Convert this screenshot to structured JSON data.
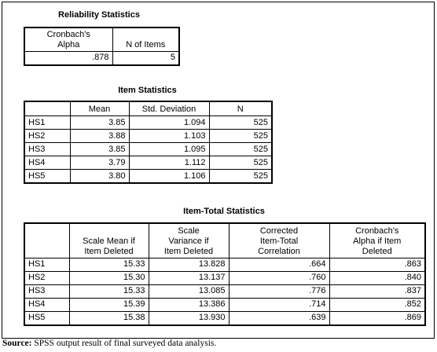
{
  "reliability_statistics": {
    "title": "Reliability Statistics",
    "headers": [
      "Cronbach's\nAlpha",
      "N of Items"
    ],
    "rows": [
      [
        ".878",
        "5"
      ]
    ]
  },
  "item_statistics": {
    "title": "Item Statistics",
    "headers": [
      "Mean",
      "Std. Deviation",
      "N"
    ],
    "rows": [
      {
        "label": "HS1",
        "values": [
          "3.85",
          "1.094",
          "525"
        ]
      },
      {
        "label": "HS2",
        "values": [
          "3.88",
          "1.103",
          "525"
        ]
      },
      {
        "label": "HS3",
        "values": [
          "3.85",
          "1.095",
          "525"
        ]
      },
      {
        "label": "HS4",
        "values": [
          "3.79",
          "1.112",
          "525"
        ]
      },
      {
        "label": "HS5",
        "values": [
          "3.80",
          "1.106",
          "525"
        ]
      }
    ]
  },
  "item_total_statistics": {
    "title": "Item-Total Statistics",
    "headers": [
      "Scale Mean if\nItem Deleted",
      "Scale\nVariance if\nItem Deleted",
      "Corrected\nItem-Total\nCorrelation",
      "Cronbach's\nAlpha if Item\nDeleted"
    ],
    "rows": [
      {
        "label": "HS1",
        "values": [
          "15.33",
          "13.828",
          ".664",
          ".863"
        ]
      },
      {
        "label": "HS2",
        "values": [
          "15.30",
          "13.137",
          ".760",
          ".840"
        ]
      },
      {
        "label": "HS3",
        "values": [
          "15.33",
          "13.085",
          ".776",
          ".837"
        ]
      },
      {
        "label": "HS4",
        "values": [
          "15.39",
          "13.386",
          ".714",
          ".852"
        ]
      },
      {
        "label": "HS5",
        "values": [
          "15.38",
          "13.930",
          ".639",
          ".869"
        ]
      }
    ]
  },
  "source": {
    "label": "Source:",
    "text": "SPSS output result of final surveyed data analysis."
  }
}
